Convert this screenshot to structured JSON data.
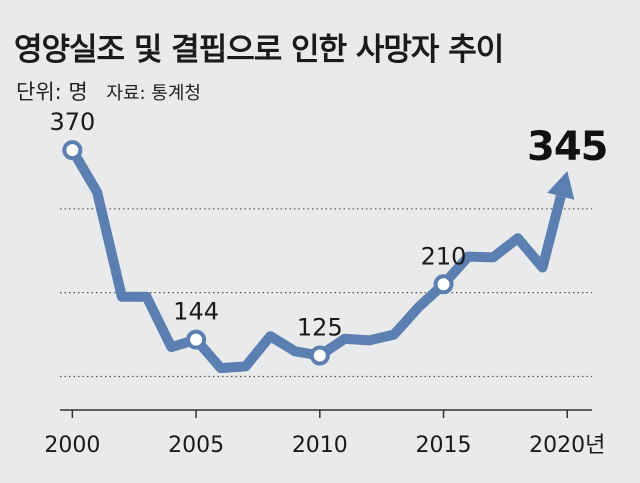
{
  "header": {
    "title": "영양실조 및 결핍으로 인한 사망자 추이",
    "unit": "단위: 명",
    "source": "자료: 통계청"
  },
  "colors": {
    "background": "#e9eaec",
    "line": "#5b7fb0",
    "marker_fill": "#ffffff",
    "grid": "#555555",
    "text": "#1a1a1a"
  },
  "chart_data": {
    "type": "line",
    "title": "영양실조 및 결핍으로 인한 사망자 추이",
    "ylabel": "단위: 명",
    "xlabel": "",
    "x_tick_labels": [
      "2000",
      "2005",
      "2010",
      "2015",
      "2020년"
    ],
    "x_ticks": [
      2000,
      2005,
      2010,
      2015,
      2020
    ],
    "xlim": [
      1999.5,
      2021
    ],
    "ylim": [
      60,
      400
    ],
    "grid": "horizontal-dotted",
    "legend": "none",
    "series": [
      {
        "x": [
          2000,
          2001,
          2002,
          2003,
          2004,
          2005,
          2006,
          2007,
          2008,
          2009,
          2010,
          2011,
          2012,
          2013,
          2014,
          2015,
          2016,
          2017,
          2018,
          2019,
          2020
        ],
        "values": [
          370,
          320,
          195,
          195,
          135,
          144,
          110,
          112,
          148,
          130,
          125,
          145,
          143,
          150,
          183,
          210,
          243,
          242,
          265,
          230,
          345
        ]
      }
    ],
    "annotations": [
      {
        "x": 2000,
        "y": 370,
        "label": "370",
        "style": "normal",
        "marker": "circle"
      },
      {
        "x": 2005,
        "y": 144,
        "label": "144",
        "style": "normal",
        "marker": "circle"
      },
      {
        "x": 2010,
        "y": 125,
        "label": "125",
        "style": "normal",
        "marker": "circle"
      },
      {
        "x": 2015,
        "y": 210,
        "label": "210",
        "style": "normal",
        "marker": "circle"
      },
      {
        "x": 2020,
        "y": 345,
        "label": "345",
        "style": "bold-large",
        "marker": "arrow"
      }
    ]
  }
}
